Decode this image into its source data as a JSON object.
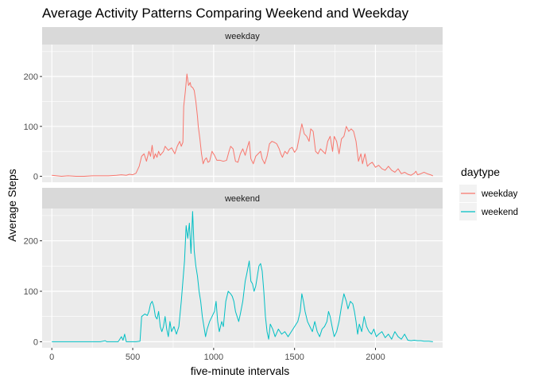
{
  "chart_data": {
    "type": "line",
    "title": "Average Activity Patterns Comparing Weekend and Weekday",
    "xlabel": "five-minute intervals",
    "ylabel": "Average Steps",
    "xlim": [
      -60,
      2415
    ],
    "ylim": [
      -12,
      264
    ],
    "x_ticks": [
      0,
      500,
      1000,
      1500,
      2000
    ],
    "x_minor_ticks": [
      250,
      750,
      1250,
      1750,
      2250
    ],
    "y_ticks": [
      0,
      100,
      200
    ],
    "y_minor_ticks": [
      50,
      150,
      250
    ],
    "grid": true,
    "legend": {
      "title": "daytype",
      "position": "right"
    },
    "series": [
      {
        "name": "weekday",
        "color": "#F8766D",
        "points": [
          [
            0,
            2
          ],
          [
            30,
            1
          ],
          [
            60,
            0
          ],
          [
            100,
            1
          ],
          [
            150,
            0
          ],
          [
            200,
            0
          ],
          [
            250,
            1
          ],
          [
            300,
            1
          ],
          [
            350,
            1
          ],
          [
            400,
            2
          ],
          [
            430,
            3
          ],
          [
            460,
            2
          ],
          [
            480,
            4
          ],
          [
            500,
            3
          ],
          [
            520,
            6
          ],
          [
            540,
            20
          ],
          [
            555,
            40
          ],
          [
            570,
            45
          ],
          [
            585,
            30
          ],
          [
            600,
            50
          ],
          [
            610,
            40
          ],
          [
            620,
            62
          ],
          [
            630,
            35
          ],
          [
            640,
            45
          ],
          [
            650,
            38
          ],
          [
            660,
            50
          ],
          [
            670,
            42
          ],
          [
            690,
            50
          ],
          [
            700,
            60
          ],
          [
            720,
            52
          ],
          [
            740,
            57
          ],
          [
            760,
            45
          ],
          [
            775,
            60
          ],
          [
            790,
            70
          ],
          [
            800,
            60
          ],
          [
            810,
            68
          ],
          [
            815,
            140
          ],
          [
            825,
            170
          ],
          [
            835,
            205
          ],
          [
            845,
            182
          ],
          [
            855,
            188
          ],
          [
            860,
            180
          ],
          [
            870,
            178
          ],
          [
            880,
            172
          ],
          [
            890,
            150
          ],
          [
            900,
            120
          ],
          [
            905,
            100
          ],
          [
            915,
            75
          ],
          [
            925,
            45
          ],
          [
            935,
            25
          ],
          [
            945,
            33
          ],
          [
            955,
            37
          ],
          [
            965,
            28
          ],
          [
            975,
            30
          ],
          [
            990,
            50
          ],
          [
            1005,
            42
          ],
          [
            1020,
            32
          ],
          [
            1040,
            32
          ],
          [
            1060,
            30
          ],
          [
            1080,
            32
          ],
          [
            1095,
            50
          ],
          [
            1105,
            60
          ],
          [
            1120,
            55
          ],
          [
            1135,
            30
          ],
          [
            1150,
            28
          ],
          [
            1165,
            45
          ],
          [
            1180,
            55
          ],
          [
            1195,
            42
          ],
          [
            1210,
            60
          ],
          [
            1220,
            70
          ],
          [
            1230,
            35
          ],
          [
            1245,
            25
          ],
          [
            1260,
            40
          ],
          [
            1275,
            45
          ],
          [
            1290,
            50
          ],
          [
            1300,
            35
          ],
          [
            1315,
            25
          ],
          [
            1330,
            40
          ],
          [
            1345,
            65
          ],
          [
            1360,
            70
          ],
          [
            1375,
            68
          ],
          [
            1390,
            65
          ],
          [
            1405,
            55
          ],
          [
            1415,
            45
          ],
          [
            1425,
            38
          ],
          [
            1440,
            50
          ],
          [
            1455,
            45
          ],
          [
            1470,
            55
          ],
          [
            1485,
            58
          ],
          [
            1500,
            48
          ],
          [
            1515,
            55
          ],
          [
            1530,
            80
          ],
          [
            1545,
            105
          ],
          [
            1560,
            85
          ],
          [
            1575,
            80
          ],
          [
            1590,
            70
          ],
          [
            1600,
            95
          ],
          [
            1615,
            90
          ],
          [
            1630,
            50
          ],
          [
            1645,
            45
          ],
          [
            1660,
            55
          ],
          [
            1675,
            50
          ],
          [
            1690,
            45
          ],
          [
            1705,
            70
          ],
          [
            1720,
            80
          ],
          [
            1735,
            50
          ],
          [
            1745,
            80
          ],
          [
            1760,
            70
          ],
          [
            1775,
            45
          ],
          [
            1790,
            75
          ],
          [
            1805,
            80
          ],
          [
            1820,
            100
          ],
          [
            1835,
            90
          ],
          [
            1850,
            95
          ],
          [
            1865,
            90
          ],
          [
            1880,
            70
          ],
          [
            1895,
            30
          ],
          [
            1910,
            45
          ],
          [
            1920,
            25
          ],
          [
            1935,
            45
          ],
          [
            1950,
            20
          ],
          [
            1965,
            25
          ],
          [
            1980,
            28
          ],
          [
            2000,
            18
          ],
          [
            2020,
            22
          ],
          [
            2040,
            15
          ],
          [
            2060,
            12
          ],
          [
            2080,
            20
          ],
          [
            2100,
            12
          ],
          [
            2120,
            8
          ],
          [
            2140,
            15
          ],
          [
            2160,
            5
          ],
          [
            2180,
            8
          ],
          [
            2200,
            4
          ],
          [
            2220,
            2
          ],
          [
            2240,
            6
          ],
          [
            2250,
            10
          ],
          [
            2260,
            3
          ],
          [
            2280,
            5
          ],
          [
            2300,
            8
          ],
          [
            2320,
            5
          ],
          [
            2340,
            3
          ],
          [
            2355,
            1
          ]
        ]
      },
      {
        "name": "weekend",
        "color": "#00BFC4",
        "points": [
          [
            0,
            0
          ],
          [
            50,
            0
          ],
          [
            100,
            0
          ],
          [
            150,
            0
          ],
          [
            200,
            0
          ],
          [
            250,
            0
          ],
          [
            300,
            0
          ],
          [
            330,
            2
          ],
          [
            340,
            0
          ],
          [
            380,
            0
          ],
          [
            410,
            0
          ],
          [
            420,
            5
          ],
          [
            430,
            10
          ],
          [
            440,
            3
          ],
          [
            450,
            15
          ],
          [
            460,
            0
          ],
          [
            480,
            0
          ],
          [
            500,
            0
          ],
          [
            520,
            0
          ],
          [
            545,
            1
          ],
          [
            555,
            50
          ],
          [
            575,
            55
          ],
          [
            590,
            52
          ],
          [
            600,
            60
          ],
          [
            610,
            75
          ],
          [
            620,
            80
          ],
          [
            630,
            70
          ],
          [
            640,
            50
          ],
          [
            650,
            45
          ],
          [
            660,
            60
          ],
          [
            670,
            30
          ],
          [
            680,
            20
          ],
          [
            690,
            30
          ],
          [
            700,
            50
          ],
          [
            710,
            25
          ],
          [
            720,
            10
          ],
          [
            730,
            40
          ],
          [
            740,
            20
          ],
          [
            755,
            30
          ],
          [
            770,
            15
          ],
          [
            785,
            30
          ],
          [
            800,
            80
          ],
          [
            810,
            120
          ],
          [
            820,
            160
          ],
          [
            830,
            230
          ],
          [
            840,
            205
          ],
          [
            850,
            235
          ],
          [
            855,
            205
          ],
          [
            860,
            175
          ],
          [
            870,
            258
          ],
          [
            875,
            220
          ],
          [
            880,
            180
          ],
          [
            890,
            150
          ],
          [
            900,
            130
          ],
          [
            910,
            100
          ],
          [
            920,
            80
          ],
          [
            930,
            50
          ],
          [
            940,
            30
          ],
          [
            950,
            10
          ],
          [
            960,
            25
          ],
          [
            975,
            40
          ],
          [
            990,
            50
          ],
          [
            1005,
            60
          ],
          [
            1015,
            80
          ],
          [
            1025,
            40
          ],
          [
            1035,
            20
          ],
          [
            1050,
            40
          ],
          [
            1060,
            30
          ],
          [
            1075,
            80
          ],
          [
            1090,
            100
          ],
          [
            1105,
            95
          ],
          [
            1115,
            90
          ],
          [
            1125,
            80
          ],
          [
            1135,
            60
          ],
          [
            1145,
            50
          ],
          [
            1155,
            40
          ],
          [
            1165,
            55
          ],
          [
            1180,
            80
          ],
          [
            1195,
            120
          ],
          [
            1205,
            135
          ],
          [
            1220,
            160
          ],
          [
            1230,
            120
          ],
          [
            1240,
            115
          ],
          [
            1250,
            100
          ],
          [
            1260,
            110
          ],
          [
            1270,
            130
          ],
          [
            1280,
            150
          ],
          [
            1290,
            155
          ],
          [
            1300,
            140
          ],
          [
            1310,
            100
          ],
          [
            1320,
            50
          ],
          [
            1330,
            20
          ],
          [
            1340,
            5
          ],
          [
            1350,
            35
          ],
          [
            1365,
            25
          ],
          [
            1380,
            10
          ],
          [
            1400,
            25
          ],
          [
            1420,
            15
          ],
          [
            1440,
            20
          ],
          [
            1460,
            10
          ],
          [
            1480,
            20
          ],
          [
            1500,
            30
          ],
          [
            1520,
            40
          ],
          [
            1535,
            60
          ],
          [
            1545,
            95
          ],
          [
            1555,
            80
          ],
          [
            1565,
            60
          ],
          [
            1580,
            40
          ],
          [
            1595,
            30
          ],
          [
            1610,
            20
          ],
          [
            1625,
            40
          ],
          [
            1640,
            20
          ],
          [
            1655,
            10
          ],
          [
            1670,
            25
          ],
          [
            1685,
            30
          ],
          [
            1700,
            40
          ],
          [
            1710,
            60
          ],
          [
            1720,
            50
          ],
          [
            1735,
            25
          ],
          [
            1745,
            10
          ],
          [
            1760,
            20
          ],
          [
            1775,
            40
          ],
          [
            1790,
            70
          ],
          [
            1805,
            95
          ],
          [
            1820,
            80
          ],
          [
            1830,
            65
          ],
          [
            1845,
            80
          ],
          [
            1860,
            75
          ],
          [
            1870,
            60
          ],
          [
            1880,
            40
          ],
          [
            1890,
            15
          ],
          [
            1900,
            35
          ],
          [
            1915,
            20
          ],
          [
            1930,
            50
          ],
          [
            1945,
            30
          ],
          [
            1960,
            20
          ],
          [
            1975,
            15
          ],
          [
            1990,
            25
          ],
          [
            2005,
            10
          ],
          [
            2020,
            15
          ],
          [
            2040,
            20
          ],
          [
            2060,
            8
          ],
          [
            2080,
            15
          ],
          [
            2100,
            5
          ],
          [
            2120,
            20
          ],
          [
            2140,
            10
          ],
          [
            2160,
            5
          ],
          [
            2180,
            15
          ],
          [
            2200,
            3
          ],
          [
            2220,
            2
          ],
          [
            2240,
            3
          ],
          [
            2260,
            2
          ],
          [
            2280,
            2
          ],
          [
            2300,
            1
          ],
          [
            2330,
            1
          ],
          [
            2355,
            0
          ]
        ]
      }
    ],
    "facets": [
      {
        "label": "weekday",
        "series": "weekday"
      },
      {
        "label": "weekend",
        "series": "weekend"
      }
    ]
  }
}
